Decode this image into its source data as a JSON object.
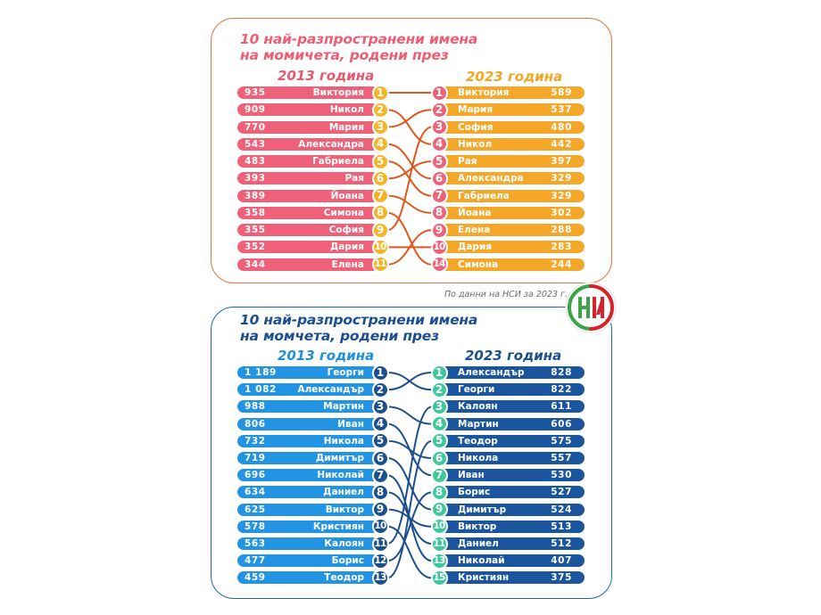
{
  "source_note": "По данни на НСИ за 2023 г.",
  "logo": {
    "text": "НИ",
    "colors": [
      "#3ca349",
      "#d6232a"
    ]
  },
  "colors": {
    "girls_left_bar": "#ee6179",
    "girls_left_badge": "#f4b426",
    "girls_right_bar": "#f5a72a",
    "girls_right_badge": "#ee6179",
    "girls_link": "#e0571f",
    "girls_border": "#e8703a",
    "boys_left_bar": "#2394e3",
    "boys_left_badge": "#1c4f8e",
    "boys_right_bar": "#1a559d",
    "boys_right_badge": "#3ec79a",
    "boys_link": "#1c4f8e",
    "boys_border": "#1e66b4"
  },
  "chart_data": [
    {
      "type": "table",
      "key": "girls",
      "title_line1": "10 най-разпространени имена",
      "title_line2": "на момичета, родени през",
      "left_year": "2013 година",
      "right_year": "2023 година",
      "left": [
        {
          "rank": "1",
          "name": "Виктория",
          "value": "935"
        },
        {
          "rank": "2",
          "name": "Никол",
          "value": "909"
        },
        {
          "rank": "3",
          "name": "Мария",
          "value": "770"
        },
        {
          "rank": "4",
          "name": "Александра",
          "value": "543"
        },
        {
          "rank": "5",
          "name": "Габриела",
          "value": "483"
        },
        {
          "rank": "6",
          "name": "Рая",
          "value": "393"
        },
        {
          "rank": "7",
          "name": "Йоана",
          "value": "389"
        },
        {
          "rank": "8",
          "name": "Симона",
          "value": "358"
        },
        {
          "rank": "9",
          "name": "София",
          "value": "355"
        },
        {
          "rank": "10",
          "name": "Дария",
          "value": "352"
        },
        {
          "rank": "11",
          "name": "Елена",
          "value": "344"
        }
      ],
      "right": [
        {
          "rank": "1",
          "name": "Виктория",
          "value": "589"
        },
        {
          "rank": "2",
          "name": "Мария",
          "value": "537"
        },
        {
          "rank": "3",
          "name": "София",
          "value": "480"
        },
        {
          "rank": "4",
          "name": "Никол",
          "value": "442"
        },
        {
          "rank": "5",
          "name": "Рая",
          "value": "397"
        },
        {
          "rank": "6",
          "name": "Александра",
          "value": "329"
        },
        {
          "rank": "7",
          "name": "Габриела",
          "value": "329"
        },
        {
          "rank": "8",
          "name": "Йоана",
          "value": "302"
        },
        {
          "rank": "9",
          "name": "Елена",
          "value": "288"
        },
        {
          "rank": "10",
          "name": "Дария",
          "value": "283"
        },
        {
          "rank": "14",
          "name": "Симона",
          "value": "244"
        }
      ]
    },
    {
      "type": "table",
      "key": "boys",
      "title_line1": "10 най-разпространени имена",
      "title_line2": "на момчета, родени през",
      "left_year": "2013 година",
      "right_year": "2023 година",
      "left": [
        {
          "rank": "1",
          "name": "Георги",
          "value": "1 189"
        },
        {
          "rank": "2",
          "name": "Александър",
          "value": "1 082"
        },
        {
          "rank": "3",
          "name": "Мартин",
          "value": "988"
        },
        {
          "rank": "4",
          "name": "Иван",
          "value": "806"
        },
        {
          "rank": "5",
          "name": "Никола",
          "value": "732"
        },
        {
          "rank": "6",
          "name": "Димитър",
          "value": "719"
        },
        {
          "rank": "7",
          "name": "Николай",
          "value": "696"
        },
        {
          "rank": "8",
          "name": "Даниел",
          "value": "634"
        },
        {
          "rank": "9",
          "name": "Виктор",
          "value": "625"
        },
        {
          "rank": "10",
          "name": "Кристиян",
          "value": "578"
        },
        {
          "rank": "11",
          "name": "Калоян",
          "value": "563"
        },
        {
          "rank": "12",
          "name": "Борис",
          "value": "477"
        },
        {
          "rank": "13",
          "name": "Теодор",
          "value": "459"
        }
      ],
      "right": [
        {
          "rank": "1",
          "name": "Александър",
          "value": "828"
        },
        {
          "rank": "2",
          "name": "Георги",
          "value": "822"
        },
        {
          "rank": "3",
          "name": "Калоян",
          "value": "611"
        },
        {
          "rank": "4",
          "name": "Мартин",
          "value": "606"
        },
        {
          "rank": "5",
          "name": "Теодор",
          "value": "575"
        },
        {
          "rank": "6",
          "name": "Никола",
          "value": "557"
        },
        {
          "rank": "7",
          "name": "Иван",
          "value": "530"
        },
        {
          "rank": "8",
          "name": "Борис",
          "value": "527"
        },
        {
          "rank": "9",
          "name": "Димитър",
          "value": "524"
        },
        {
          "rank": "10",
          "name": "Виктор",
          "value": "513"
        },
        {
          "rank": "11",
          "name": "Даниел",
          "value": "512"
        },
        {
          "rank": "13",
          "name": "Николай",
          "value": "407"
        },
        {
          "rank": "15",
          "name": "Кристиян",
          "value": "375"
        }
      ]
    }
  ]
}
